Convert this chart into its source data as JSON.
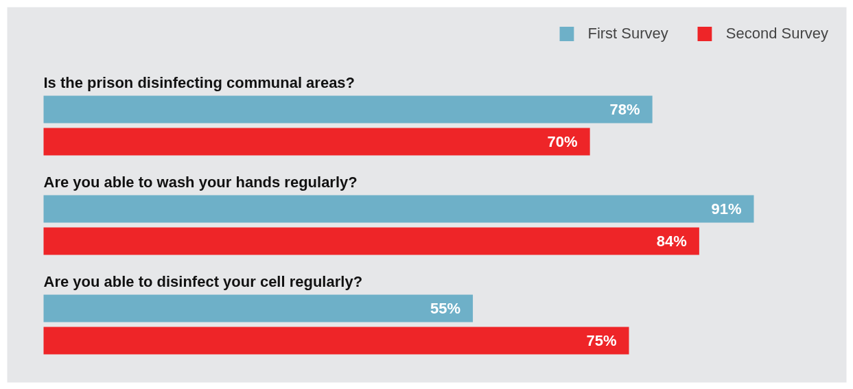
{
  "chart_data": {
    "type": "bar",
    "orientation": "horizontal",
    "categories": [
      "Is the prison disinfecting communal areas?",
      "Are you able to wash your hands regularly?",
      "Are you able to disinfect your cell regularly?"
    ],
    "series": [
      {
        "name": "First Survey",
        "color": "#6eb0c8",
        "values": [
          78,
          91,
          55
        ],
        "value_labels": [
          "78%",
          "91%",
          "55%"
        ]
      },
      {
        "name": "Second Survey",
        "color": "#ee2528",
        "values": [
          70,
          84,
          75
        ],
        "value_labels": [
          "70%",
          "84%",
          "75%"
        ]
      }
    ],
    "legend": "top right",
    "tick_labels": false
  }
}
